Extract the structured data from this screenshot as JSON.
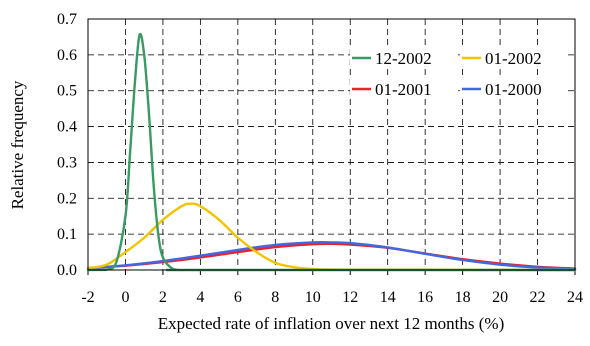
{
  "chart_data": {
    "type": "line",
    "title": "",
    "xlabel": "Expected rate of inflation over next 12 months (%)",
    "ylabel": "Relative frequency",
    "xlim": [
      -2,
      24
    ],
    "ylim": [
      0,
      0.7
    ],
    "x_ticks": [
      "-2",
      "0",
      "2",
      "4",
      "6",
      "8",
      "10",
      "12",
      "14",
      "16",
      "18",
      "20",
      "22",
      "24"
    ],
    "y_ticks": [
      "0.0",
      "0.1",
      "0.2",
      "0.3",
      "0.4",
      "0.5",
      "0.6",
      "0.7"
    ],
    "grid": true,
    "legend_position": "top-right",
    "series": [
      {
        "name": "12-2002",
        "color": "#3a9a63",
        "x": [
          -2,
          -1,
          -0.5,
          0,
          0.25,
          0.5,
          0.75,
          1,
          1.25,
          1.5,
          1.75,
          2,
          2.5,
          3,
          4,
          24
        ],
        "y": [
          0.0,
          0.001,
          0.02,
          0.15,
          0.33,
          0.52,
          0.655,
          0.6,
          0.44,
          0.24,
          0.1,
          0.035,
          0.004,
          0.0,
          0.0,
          0.0
        ]
      },
      {
        "name": "01-2002",
        "color": "#f2c300",
        "x": [
          -2,
          -1,
          0,
          1,
          2,
          3,
          3.5,
          4,
          5,
          6,
          7,
          8,
          9,
          10,
          12,
          24
        ],
        "y": [
          0.005,
          0.015,
          0.05,
          0.09,
          0.14,
          0.178,
          0.185,
          0.178,
          0.14,
          0.09,
          0.05,
          0.02,
          0.008,
          0.003,
          0.001,
          0.0
        ]
      },
      {
        "name": "01-2001",
        "color": "#e8212b",
        "x": [
          -2,
          0,
          2,
          4,
          6,
          8,
          10,
          11,
          12,
          14,
          16,
          18,
          20,
          22,
          24
        ],
        "y": [
          0.005,
          0.012,
          0.022,
          0.035,
          0.05,
          0.064,
          0.072,
          0.073,
          0.071,
          0.062,
          0.046,
          0.03,
          0.018,
          0.009,
          0.004
        ]
      },
      {
        "name": "01-2000",
        "color": "#4466e0",
        "x": [
          -2,
          0,
          2,
          4,
          6,
          8,
          10,
          11,
          12,
          14,
          16,
          18,
          20,
          22,
          24
        ],
        "y": [
          0.005,
          0.013,
          0.025,
          0.04,
          0.056,
          0.07,
          0.077,
          0.077,
          0.075,
          0.063,
          0.045,
          0.028,
          0.015,
          0.007,
          0.003
        ]
      }
    ]
  }
}
